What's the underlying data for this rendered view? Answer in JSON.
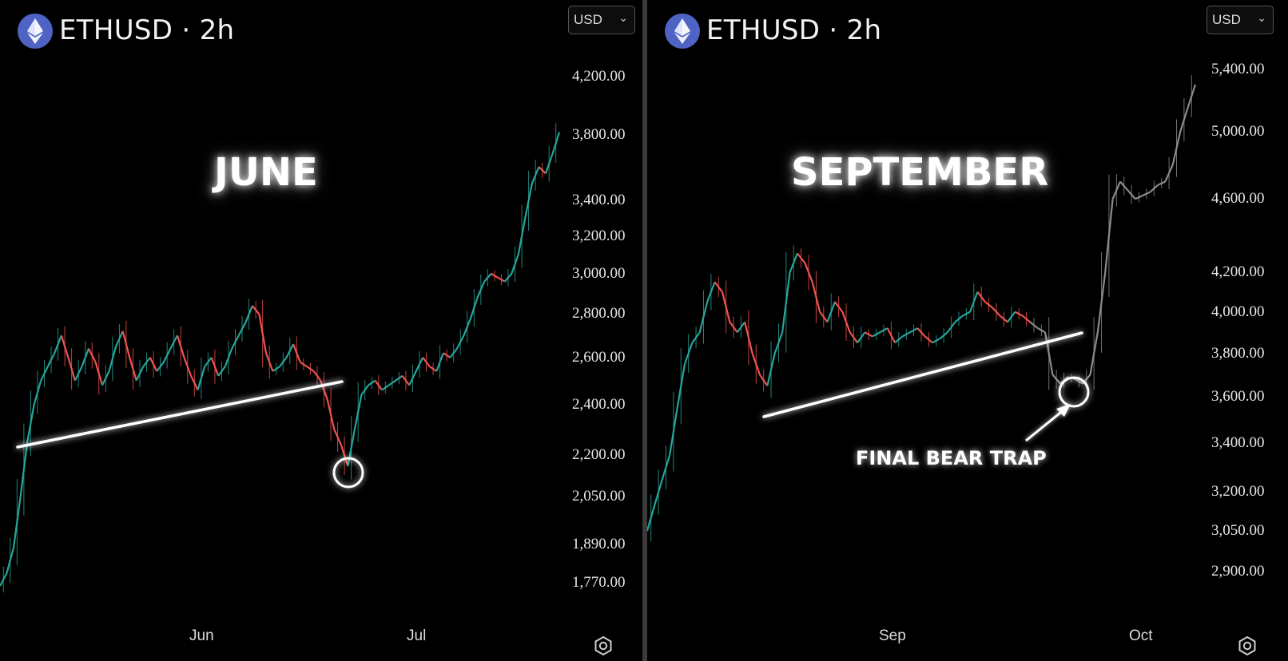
{
  "colors": {
    "up": "#26a69a",
    "down": "#ef5350",
    "neutral": "#8c8c8c",
    "background": "#000000",
    "logo": "#4f63c4"
  },
  "left": {
    "symbol_title": "ETHUSD · 2h",
    "currency": "USD",
    "label": "JUNE",
    "icon": "settings-icon"
  },
  "right": {
    "symbol_title": "ETHUSD · 2h",
    "currency": "USD",
    "label": "SEPTEMBER",
    "annotation": "FINAL BEAR TRAP",
    "icon": "settings-icon"
  },
  "chart_data": [
    {
      "type": "line",
      "title": "ETHUSD · 2h",
      "label": "JUNE",
      "y_scale": "log",
      "y_ticks": [
        "4,200.00",
        "3,800.00",
        "3,400.00",
        "3,200.00",
        "3,000.00",
        "2,800.00",
        "2,600.00",
        "2,400.00",
        "2,200.00",
        "2,050.00",
        "1,890.00",
        "1,770.00"
      ],
      "x_ticks": [
        "Jun",
        "Jul"
      ],
      "series": [
        {
          "values": [
            1760,
            1800,
            1880,
            2050,
            2250,
            2400,
            2500,
            2560,
            2620,
            2700,
            2600,
            2500,
            2560,
            2640,
            2580,
            2480,
            2540,
            2650,
            2720,
            2600,
            2500,
            2560,
            2600,
            2540,
            2580,
            2640,
            2700,
            2600,
            2520,
            2460,
            2560,
            2600,
            2520,
            2560,
            2640,
            2700,
            2760,
            2840,
            2800,
            2620,
            2540,
            2560,
            2600,
            2660,
            2580,
            2560,
            2540,
            2500,
            2420,
            2300,
            2240,
            2160,
            2300,
            2440,
            2480,
            2500,
            2460,
            2480,
            2500,
            2520,
            2480,
            2540,
            2600,
            2560,
            2540,
            2620,
            2600,
            2640,
            2700,
            2780,
            2880,
            2960,
            3000,
            2980,
            2960,
            3000,
            3100,
            3300,
            3500,
            3600,
            3560,
            3680,
            3820
          ]
        }
      ],
      "trendline": {
        "from": 2300,
        "to": 2530
      },
      "circled_low": 2150
    },
    {
      "type": "line",
      "title": "ETHUSD · 2h",
      "label": "SEPTEMBER",
      "y_scale": "log",
      "y_ticks": [
        "5,400.00",
        "5,000.00",
        "4,600.00",
        "4,200.00",
        "4,000.00",
        "3,800.00",
        "3,600.00",
        "3,400.00",
        "3,200.00",
        "3,050.00",
        "2,900.00"
      ],
      "x_ticks": [
        "Sep",
        "Oct"
      ],
      "annotation": "FINAL BEAR TRAP",
      "series": [
        {
          "values": [
            3050,
            3150,
            3250,
            3350,
            3550,
            3750,
            3850,
            3900,
            4050,
            4150,
            4100,
            3950,
            3900,
            3950,
            3800,
            3700,
            3650,
            3800,
            3900,
            4200,
            4300,
            4250,
            4150,
            4000,
            3950,
            4050,
            4000,
            3900,
            3850,
            3900,
            3880,
            3900,
            3920,
            3850,
            3880,
            3900,
            3920,
            3880,
            3850,
            3870,
            3900,
            3950,
            3980,
            4000,
            4100,
            4050,
            4020,
            3980,
            3950,
            4000,
            3980,
            3950,
            3920,
            3900,
            3700,
            3660,
            3690,
            3680,
            3660,
            3700,
            3900,
            4200,
            4600,
            4700,
            4650,
            4600,
            4620,
            4640,
            4680,
            4700,
            4800,
            5000,
            5150,
            5300
          ]
        }
      ],
      "trendline": {
        "from": 3600,
        "to": 3950
      },
      "circled_low": 3690
    }
  ]
}
